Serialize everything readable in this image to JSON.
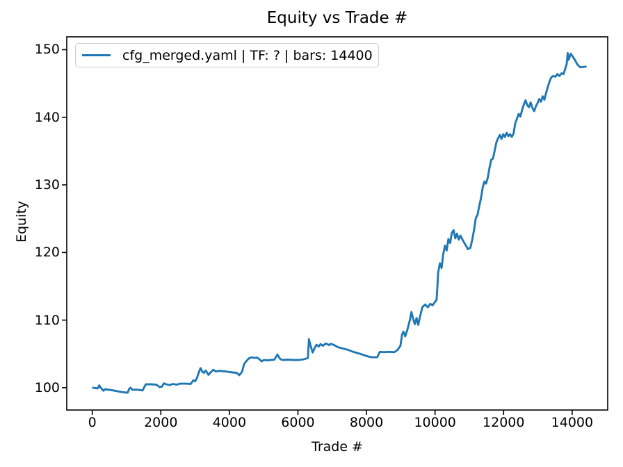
{
  "figure": {
    "title": "Equity vs Trade #",
    "background": "#ffffff",
    "text_color": "#000000",
    "legend_border_color": "#cccccc"
  },
  "chart_data": {
    "type": "line",
    "title": "Equity vs Trade #",
    "xlabel": "Trade #",
    "ylabel": "Equity",
    "grid": false,
    "legend_position": "upper left",
    "xlim": [
      -744,
      15037
    ],
    "ylim": [
      96.7,
      151.9
    ],
    "x_ticks": [
      0,
      2000,
      4000,
      6000,
      8000,
      10000,
      12000,
      14000
    ],
    "y_ticks": [
      100,
      110,
      120,
      130,
      140,
      150
    ],
    "series": [
      {
        "name": "cfg_merged.yaml | TF: ? | bars: 14400",
        "color": "#1f77b4",
        "line_width": 2.9,
        "points": [
          [
            0,
            100.0
          ],
          [
            90,
            99.95
          ],
          [
            160,
            99.9
          ],
          [
            205,
            100.35
          ],
          [
            240,
            100.05
          ],
          [
            290,
            99.75
          ],
          [
            330,
            99.55
          ],
          [
            390,
            99.8
          ],
          [
            460,
            99.7
          ],
          [
            560,
            99.65
          ],
          [
            660,
            99.55
          ],
          [
            760,
            99.45
          ],
          [
            860,
            99.35
          ],
          [
            960,
            99.3
          ],
          [
            1030,
            99.25
          ],
          [
            1080,
            99.85
          ],
          [
            1120,
            100.0
          ],
          [
            1170,
            99.7
          ],
          [
            1320,
            99.7
          ],
          [
            1470,
            99.6
          ],
          [
            1560,
            100.5
          ],
          [
            1720,
            100.5
          ],
          [
            1870,
            100.45
          ],
          [
            1960,
            100.1
          ],
          [
            2030,
            100.15
          ],
          [
            2090,
            100.65
          ],
          [
            2160,
            100.5
          ],
          [
            2260,
            100.4
          ],
          [
            2360,
            100.55
          ],
          [
            2460,
            100.45
          ],
          [
            2560,
            100.6
          ],
          [
            2720,
            100.6
          ],
          [
            2870,
            100.55
          ],
          [
            2950,
            101.1
          ],
          [
            3000,
            100.95
          ],
          [
            3060,
            101.5
          ],
          [
            3110,
            102.3
          ],
          [
            3160,
            102.9
          ],
          [
            3210,
            102.35
          ],
          [
            3260,
            102.2
          ],
          [
            3310,
            102.55
          ],
          [
            3390,
            101.9
          ],
          [
            3460,
            102.3
          ],
          [
            3530,
            102.65
          ],
          [
            3610,
            102.4
          ],
          [
            3710,
            102.5
          ],
          [
            3810,
            102.45
          ],
          [
            3910,
            102.4
          ],
          [
            4010,
            102.3
          ],
          [
            4110,
            102.25
          ],
          [
            4210,
            102.2
          ],
          [
            4290,
            101.85
          ],
          [
            4370,
            102.35
          ],
          [
            4430,
            103.5
          ],
          [
            4490,
            103.9
          ],
          [
            4570,
            104.35
          ],
          [
            4660,
            104.5
          ],
          [
            4730,
            104.4
          ],
          [
            4810,
            104.45
          ],
          [
            4880,
            104.2
          ],
          [
            4940,
            103.9
          ],
          [
            5010,
            104.1
          ],
          [
            5110,
            104.05
          ],
          [
            5210,
            104.1
          ],
          [
            5310,
            104.15
          ],
          [
            5400,
            104.9
          ],
          [
            5490,
            104.2
          ],
          [
            5570,
            104.1
          ],
          [
            5720,
            104.15
          ],
          [
            5870,
            104.1
          ],
          [
            6020,
            104.1
          ],
          [
            6170,
            104.2
          ],
          [
            6290,
            104.4
          ],
          [
            6320,
            107.2
          ],
          [
            6370,
            106.2
          ],
          [
            6430,
            105.2
          ],
          [
            6490,
            105.9
          ],
          [
            6540,
            106.35
          ],
          [
            6610,
            106.1
          ],
          [
            6660,
            106.45
          ],
          [
            6730,
            106.2
          ],
          [
            6810,
            106.55
          ],
          [
            6910,
            106.3
          ],
          [
            6960,
            106.5
          ],
          [
            7060,
            106.3
          ],
          [
            7160,
            106.0
          ],
          [
            7310,
            105.8
          ],
          [
            7460,
            105.6
          ],
          [
            7610,
            105.3
          ],
          [
            7760,
            105.1
          ],
          [
            7910,
            104.85
          ],
          [
            8060,
            104.6
          ],
          [
            8160,
            104.5
          ],
          [
            8310,
            104.5
          ],
          [
            8390,
            105.3
          ],
          [
            8510,
            105.25
          ],
          [
            8660,
            105.3
          ],
          [
            8810,
            105.25
          ],
          [
            8910,
            105.6
          ],
          [
            8990,
            106.2
          ],
          [
            9040,
            107.9
          ],
          [
            9080,
            108.3
          ],
          [
            9130,
            107.6
          ],
          [
            9190,
            108.5
          ],
          [
            9260,
            109.9
          ],
          [
            9310,
            111.2
          ],
          [
            9360,
            110.2
          ],
          [
            9410,
            109.4
          ],
          [
            9460,
            110.3
          ],
          [
            9510,
            109.3
          ],
          [
            9560,
            110.5
          ],
          [
            9630,
            111.9
          ],
          [
            9710,
            112.3
          ],
          [
            9790,
            111.9
          ],
          [
            9860,
            112.4
          ],
          [
            9930,
            112.2
          ],
          [
            10000,
            112.7
          ],
          [
            10045,
            113.0
          ],
          [
            10070,
            115.0
          ],
          [
            10090,
            117.0
          ],
          [
            10140,
            118.4
          ],
          [
            10190,
            117.7
          ],
          [
            10240,
            119.8
          ],
          [
            10290,
            121.0
          ],
          [
            10340,
            120.3
          ],
          [
            10390,
            122.0
          ],
          [
            10440,
            121.4
          ],
          [
            10490,
            122.9
          ],
          [
            10540,
            123.3
          ],
          [
            10590,
            122.1
          ],
          [
            10640,
            122.8
          ],
          [
            10690,
            121.9
          ],
          [
            10740,
            122.5
          ],
          [
            10810,
            121.8
          ],
          [
            10890,
            121.1
          ],
          [
            10960,
            120.5
          ],
          [
            11030,
            120.7
          ],
          [
            11090,
            122.0
          ],
          [
            11140,
            123.4
          ],
          [
            11190,
            125.1
          ],
          [
            11240,
            125.6
          ],
          [
            11290,
            126.9
          ],
          [
            11340,
            128.0
          ],
          [
            11390,
            129.6
          ],
          [
            11440,
            130.5
          ],
          [
            11490,
            130.2
          ],
          [
            11540,
            131.1
          ],
          [
            11590,
            132.6
          ],
          [
            11640,
            133.7
          ],
          [
            11690,
            133.9
          ],
          [
            11740,
            135.1
          ],
          [
            11790,
            136.3
          ],
          [
            11840,
            136.9
          ],
          [
            11890,
            137.4
          ],
          [
            11940,
            136.8
          ],
          [
            11990,
            137.5
          ],
          [
            12040,
            137.1
          ],
          [
            12090,
            137.7
          ],
          [
            12140,
            137.2
          ],
          [
            12190,
            137.5
          ],
          [
            12240,
            137.1
          ],
          [
            12290,
            137.6
          ],
          [
            12340,
            139.1
          ],
          [
            12390,
            139.8
          ],
          [
            12440,
            140.5
          ],
          [
            12490,
            140.1
          ],
          [
            12540,
            141.1
          ],
          [
            12590,
            141.9
          ],
          [
            12640,
            142.5
          ],
          [
            12690,
            141.8
          ],
          [
            12740,
            141.5
          ],
          [
            12790,
            142.2
          ],
          [
            12840,
            141.4
          ],
          [
            12890,
            140.9
          ],
          [
            12940,
            141.6
          ],
          [
            12990,
            142.1
          ],
          [
            13040,
            142.7
          ],
          [
            13090,
            142.3
          ],
          [
            13140,
            143.1
          ],
          [
            13190,
            142.6
          ],
          [
            13240,
            143.6
          ],
          [
            13290,
            144.5
          ],
          [
            13340,
            145.3
          ],
          [
            13390,
            145.9
          ],
          [
            13440,
            146.1
          ],
          [
            13510,
            146.0
          ],
          [
            13570,
            146.4
          ],
          [
            13630,
            146.1
          ],
          [
            13690,
            146.5
          ],
          [
            13750,
            146.4
          ],
          [
            13800,
            147.2
          ],
          [
            13840,
            147.9
          ],
          [
            13870,
            149.5
          ],
          [
            13900,
            148.5
          ],
          [
            13930,
            149.0
          ],
          [
            13960,
            149.4
          ],
          [
            14000,
            149.1
          ],
          [
            14040,
            148.8
          ],
          [
            14090,
            148.4
          ],
          [
            14140,
            147.9
          ],
          [
            14190,
            147.6
          ],
          [
            14240,
            147.4
          ],
          [
            14320,
            147.45
          ],
          [
            14420,
            147.5
          ]
        ]
      }
    ]
  }
}
